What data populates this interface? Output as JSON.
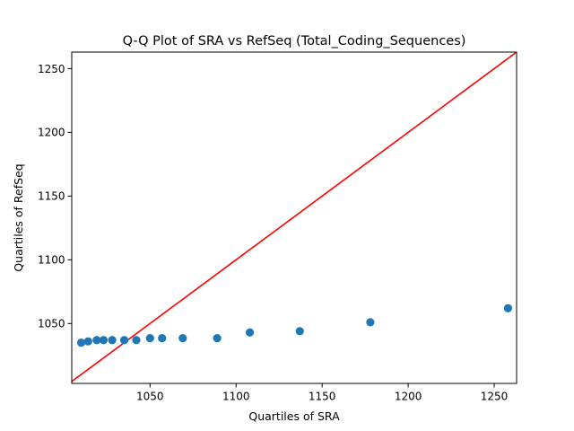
{
  "chart_data": {
    "type": "scatter",
    "title": "Q-Q Plot of SRA vs RefSeq (Total_Coding_Sequences)",
    "xlabel": "Quartiles of SRA",
    "ylabel": "Quartiles of RefSeq",
    "xlim": [
      1004.5,
      1263
    ],
    "ylim": [
      1003,
      1263
    ],
    "xticks": [
      1050,
      1100,
      1150,
      1200,
      1250
    ],
    "yticks": [
      1050,
      1100,
      1150,
      1200,
      1250
    ],
    "grid": false,
    "legend": "none",
    "marker_color": "#1f77b4",
    "reference_line_color": "#ff0000",
    "reference_line": [
      [
        1004.5,
        1004.5
      ],
      [
        1263,
        1263
      ]
    ],
    "points": [
      {
        "x": 1010,
        "y": 1035
      },
      {
        "x": 1014,
        "y": 1036
      },
      {
        "x": 1019,
        "y": 1037
      },
      {
        "x": 1023,
        "y": 1037
      },
      {
        "x": 1028,
        "y": 1037
      },
      {
        "x": 1035,
        "y": 1037
      },
      {
        "x": 1042,
        "y": 1037
      },
      {
        "x": 1050,
        "y": 1038.5
      },
      {
        "x": 1057,
        "y": 1038.5
      },
      {
        "x": 1069,
        "y": 1038.5
      },
      {
        "x": 1089,
        "y": 1038.5
      },
      {
        "x": 1108,
        "y": 1043
      },
      {
        "x": 1137,
        "y": 1044
      },
      {
        "x": 1178,
        "y": 1051
      },
      {
        "x": 1258,
        "y": 1062
      }
    ]
  }
}
